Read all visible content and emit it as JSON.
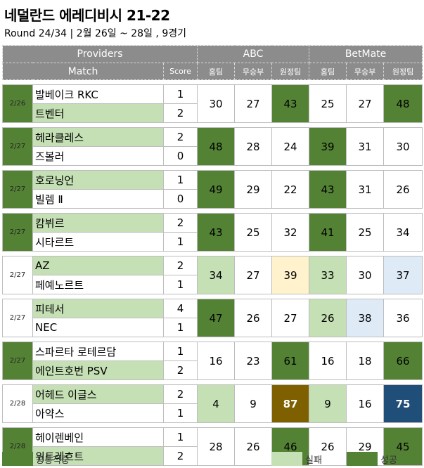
{
  "title": "네덜란드 에레디비시 21-22",
  "subtitle": "Round 24/34 | 2월 26일 ~ 28일 , 9경기",
  "header": {
    "providers": "Providers",
    "match": "Match",
    "score": "Score",
    "abc": "ABC",
    "betmate": "BetMate",
    "home": "홈팀",
    "draw": "무승부",
    "away": "원정팀"
  },
  "colors": {
    "dark_green": "#548235",
    "light_green": "#c5e0b4",
    "light_yellow": "#fff2cc",
    "light_blue": "#deebf7",
    "brown": "#7f6000",
    "navy": "#1f4e79",
    "header_gray": "#8c8c8c"
  },
  "matches": [
    {
      "date": "2/26",
      "date_color": "dg",
      "home": "발베이크 RKC",
      "home_color": "w",
      "home_score": "1",
      "away": "트벤터",
      "away_color": "lg",
      "away_score": "2",
      "abc": [
        "30",
        "27",
        "43"
      ],
      "abc_colors": [
        "w",
        "w",
        "dg"
      ],
      "bm": [
        "25",
        "27",
        "48"
      ],
      "bm_colors": [
        "w",
        "w",
        "dg"
      ]
    },
    {
      "date": "2/27",
      "date_color": "dg",
      "home": "헤라클레스",
      "home_color": "lg",
      "home_score": "2",
      "away": "즈볼러",
      "away_color": "w",
      "away_score": "0",
      "abc": [
        "48",
        "28",
        "24"
      ],
      "abc_colors": [
        "dg",
        "w",
        "w"
      ],
      "bm": [
        "39",
        "31",
        "30"
      ],
      "bm_colors": [
        "dg",
        "w",
        "w"
      ]
    },
    {
      "date": "2/27",
      "date_color": "dg",
      "home": "호로닝언",
      "home_color": "lg",
      "home_score": "1",
      "away": "빌렘 Ⅱ",
      "away_color": "w",
      "away_score": "0",
      "abc": [
        "49",
        "29",
        "22"
      ],
      "abc_colors": [
        "dg",
        "w",
        "w"
      ],
      "bm": [
        "43",
        "31",
        "26"
      ],
      "bm_colors": [
        "dg",
        "w",
        "w"
      ]
    },
    {
      "date": "2/27",
      "date_color": "dg",
      "home": "캄뷔르",
      "home_color": "lg",
      "home_score": "2",
      "away": "시타르트",
      "away_color": "w",
      "away_score": "1",
      "abc": [
        "43",
        "25",
        "32"
      ],
      "abc_colors": [
        "dg",
        "w",
        "w"
      ],
      "bm": [
        "41",
        "25",
        "34"
      ],
      "bm_colors": [
        "dg",
        "w",
        "w"
      ]
    },
    {
      "date": "2/27",
      "date_color": "w",
      "home": "AZ",
      "home_color": "lg",
      "home_score": "2",
      "away": "페예노르트",
      "away_color": "w",
      "away_score": "1",
      "abc": [
        "34",
        "27",
        "39"
      ],
      "abc_colors": [
        "lg",
        "w",
        "yel"
      ],
      "bm": [
        "33",
        "30",
        "37"
      ],
      "bm_colors": [
        "lg",
        "w",
        "blu"
      ]
    },
    {
      "date": "2/27",
      "date_color": "w",
      "home": "피테서",
      "home_color": "lg",
      "home_score": "4",
      "away": "NEC",
      "away_color": "w",
      "away_score": "1",
      "abc": [
        "47",
        "26",
        "27"
      ],
      "abc_colors": [
        "dg",
        "w",
        "w"
      ],
      "bm": [
        "26",
        "38",
        "36"
      ],
      "bm_colors": [
        "lg",
        "blu",
        "w"
      ]
    },
    {
      "date": "2/27",
      "date_color": "dg",
      "home": "스파르타 로테르담",
      "home_color": "w",
      "home_score": "1",
      "away": "에인트호번 PSV",
      "away_color": "lg",
      "away_score": "2",
      "abc": [
        "16",
        "23",
        "61"
      ],
      "abc_colors": [
        "w",
        "w",
        "dg"
      ],
      "bm": [
        "16",
        "18",
        "66"
      ],
      "bm_colors": [
        "w",
        "w",
        "dg"
      ]
    },
    {
      "date": "2/28",
      "date_color": "w",
      "home": "어헤드 이글스",
      "home_color": "lg",
      "home_score": "2",
      "away": "아약스",
      "away_color": "w",
      "away_score": "1",
      "abc": [
        "4",
        "9",
        "87"
      ],
      "abc_colors": [
        "lg",
        "w",
        "brn"
      ],
      "bm": [
        "9",
        "16",
        "75"
      ],
      "bm_colors": [
        "lg",
        "w",
        "nav"
      ]
    },
    {
      "date": "2/28",
      "date_color": "dg",
      "home": "헤이렌베인",
      "home_color": "w",
      "home_score": "1",
      "away": "위트레흐트",
      "away_color": "lg",
      "away_score": "2",
      "abc": [
        "28",
        "26",
        "46"
      ],
      "abc_colors": [
        "w",
        "w",
        "dg"
      ],
      "bm": [
        "26",
        "29",
        "45"
      ],
      "bm_colors": [
        "w",
        "w",
        "dg"
      ]
    }
  ],
  "legend": {
    "common": "공통적중",
    "fail": "실패",
    "success": "성공"
  }
}
